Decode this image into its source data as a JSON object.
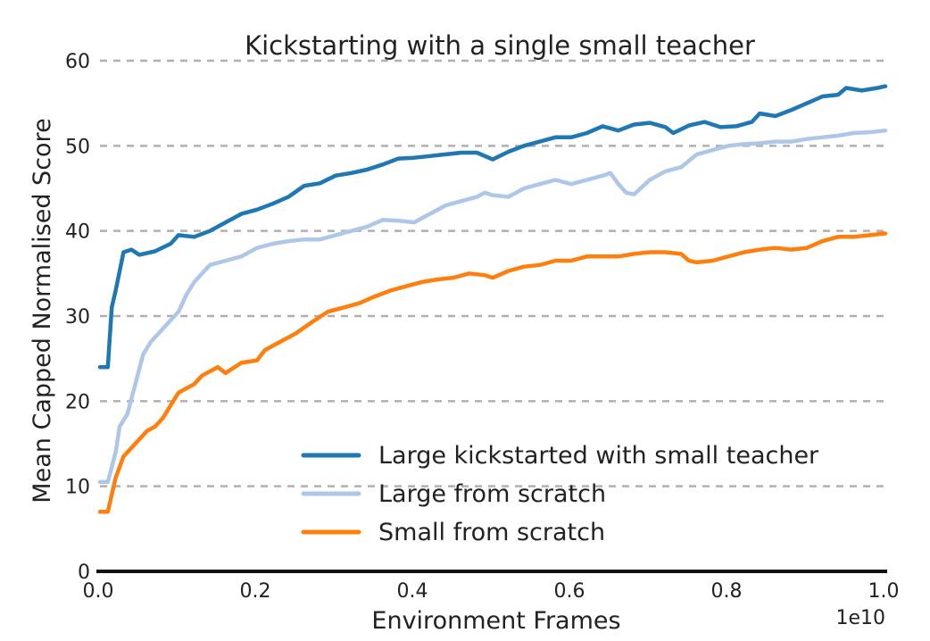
{
  "chart_data": {
    "type": "line",
    "title": "Kickstarting with a single small teacher",
    "xlabel": "Environment Frames",
    "ylabel": "Mean Capped Normalised Score",
    "x_scale_note": "1e10",
    "xlim": [
      0.0,
      1.0
    ],
    "ylim": [
      0,
      60
    ],
    "xticks": [
      "0.0",
      "0.2",
      "0.4",
      "0.6",
      "0.8",
      "1.0"
    ],
    "yticks": [
      "0",
      "10",
      "20",
      "30",
      "40",
      "50",
      "60"
    ],
    "grid": "horizontal dashed",
    "legend_position": "bottom-right",
    "series": [
      {
        "name": "Large kickstarted with small teacher",
        "color": "#1f77b4",
        "points": [
          [
            0.0,
            24.0
          ],
          [
            0.01,
            24.0
          ],
          [
            0.015,
            31.0
          ],
          [
            0.02,
            33.0
          ],
          [
            0.03,
            37.5
          ],
          [
            0.04,
            37.8
          ],
          [
            0.05,
            37.2
          ],
          [
            0.07,
            37.6
          ],
          [
            0.09,
            38.5
          ],
          [
            0.1,
            39.5
          ],
          [
            0.12,
            39.3
          ],
          [
            0.14,
            40.0
          ],
          [
            0.16,
            41.0
          ],
          [
            0.18,
            42.0
          ],
          [
            0.2,
            42.5
          ],
          [
            0.22,
            43.2
          ],
          [
            0.24,
            44.0
          ],
          [
            0.26,
            45.3
          ],
          [
            0.28,
            45.6
          ],
          [
            0.3,
            46.5
          ],
          [
            0.32,
            46.8
          ],
          [
            0.34,
            47.2
          ],
          [
            0.36,
            47.8
          ],
          [
            0.38,
            48.5
          ],
          [
            0.4,
            48.6
          ],
          [
            0.42,
            48.8
          ],
          [
            0.44,
            49.0
          ],
          [
            0.46,
            49.2
          ],
          [
            0.48,
            49.2
          ],
          [
            0.5,
            48.4
          ],
          [
            0.52,
            49.3
          ],
          [
            0.54,
            50.0
          ],
          [
            0.56,
            50.5
          ],
          [
            0.58,
            51.0
          ],
          [
            0.6,
            51.0
          ],
          [
            0.62,
            51.5
          ],
          [
            0.64,
            52.3
          ],
          [
            0.66,
            51.8
          ],
          [
            0.68,
            52.5
          ],
          [
            0.7,
            52.7
          ],
          [
            0.72,
            52.2
          ],
          [
            0.73,
            51.5
          ],
          [
            0.75,
            52.4
          ],
          [
            0.77,
            52.8
          ],
          [
            0.79,
            52.2
          ],
          [
            0.81,
            52.3
          ],
          [
            0.83,
            52.8
          ],
          [
            0.84,
            53.8
          ],
          [
            0.86,
            53.5
          ],
          [
            0.88,
            54.2
          ],
          [
            0.9,
            55.0
          ],
          [
            0.92,
            55.8
          ],
          [
            0.94,
            56.0
          ],
          [
            0.95,
            56.8
          ],
          [
            0.97,
            56.5
          ],
          [
            0.99,
            56.8
          ],
          [
            1.0,
            57.0
          ]
        ]
      },
      {
        "name": "Large from scratch",
        "color": "#aec7e8",
        "points": [
          [
            0.0,
            10.5
          ],
          [
            0.01,
            10.5
          ],
          [
            0.02,
            14.0
          ],
          [
            0.025,
            17.0
          ],
          [
            0.035,
            18.5
          ],
          [
            0.045,
            22.0
          ],
          [
            0.055,
            25.5
          ],
          [
            0.065,
            27.0
          ],
          [
            0.075,
            28.0
          ],
          [
            0.085,
            29.0
          ],
          [
            0.1,
            30.5
          ],
          [
            0.11,
            32.5
          ],
          [
            0.12,
            34.0
          ],
          [
            0.14,
            36.0
          ],
          [
            0.16,
            36.5
          ],
          [
            0.18,
            37.0
          ],
          [
            0.2,
            38.0
          ],
          [
            0.22,
            38.5
          ],
          [
            0.24,
            38.8
          ],
          [
            0.26,
            39.0
          ],
          [
            0.28,
            39.0
          ],
          [
            0.3,
            39.5
          ],
          [
            0.32,
            40.0
          ],
          [
            0.34,
            40.5
          ],
          [
            0.36,
            41.3
          ],
          [
            0.38,
            41.2
          ],
          [
            0.4,
            41.0
          ],
          [
            0.42,
            42.0
          ],
          [
            0.44,
            43.0
          ],
          [
            0.46,
            43.5
          ],
          [
            0.48,
            44.0
          ],
          [
            0.49,
            44.5
          ],
          [
            0.5,
            44.2
          ],
          [
            0.52,
            44.0
          ],
          [
            0.54,
            45.0
          ],
          [
            0.56,
            45.5
          ],
          [
            0.58,
            46.0
          ],
          [
            0.6,
            45.5
          ],
          [
            0.62,
            46.0
          ],
          [
            0.64,
            46.5
          ],
          [
            0.65,
            46.8
          ],
          [
            0.66,
            45.5
          ],
          [
            0.67,
            44.5
          ],
          [
            0.68,
            44.3
          ],
          [
            0.7,
            46.0
          ],
          [
            0.72,
            47.0
          ],
          [
            0.74,
            47.5
          ],
          [
            0.76,
            49.0
          ],
          [
            0.78,
            49.5
          ],
          [
            0.8,
            50.0
          ],
          [
            0.82,
            50.2
          ],
          [
            0.84,
            50.3
          ],
          [
            0.86,
            50.5
          ],
          [
            0.88,
            50.5
          ],
          [
            0.9,
            50.8
          ],
          [
            0.92,
            51.0
          ],
          [
            0.94,
            51.2
          ],
          [
            0.96,
            51.5
          ],
          [
            0.98,
            51.6
          ],
          [
            1.0,
            51.8
          ]
        ]
      },
      {
        "name": "Small from scratch",
        "color": "#ff7f0e",
        "points": [
          [
            0.0,
            7.0
          ],
          [
            0.01,
            7.0
          ],
          [
            0.015,
            9.0
          ],
          [
            0.02,
            11.0
          ],
          [
            0.03,
            13.5
          ],
          [
            0.05,
            15.5
          ],
          [
            0.06,
            16.5
          ],
          [
            0.07,
            17.0
          ],
          [
            0.08,
            18.0
          ],
          [
            0.09,
            19.5
          ],
          [
            0.1,
            21.0
          ],
          [
            0.11,
            21.5
          ],
          [
            0.12,
            22.0
          ],
          [
            0.13,
            23.0
          ],
          [
            0.14,
            23.5
          ],
          [
            0.15,
            24.0
          ],
          [
            0.16,
            23.3
          ],
          [
            0.18,
            24.5
          ],
          [
            0.2,
            24.8
          ],
          [
            0.21,
            26.0
          ],
          [
            0.23,
            27.0
          ],
          [
            0.25,
            28.0
          ],
          [
            0.27,
            29.3
          ],
          [
            0.29,
            30.5
          ],
          [
            0.31,
            31.0
          ],
          [
            0.33,
            31.5
          ],
          [
            0.35,
            32.3
          ],
          [
            0.37,
            33.0
          ],
          [
            0.39,
            33.5
          ],
          [
            0.41,
            34.0
          ],
          [
            0.43,
            34.3
          ],
          [
            0.45,
            34.5
          ],
          [
            0.47,
            35.0
          ],
          [
            0.49,
            34.8
          ],
          [
            0.5,
            34.5
          ],
          [
            0.52,
            35.3
          ],
          [
            0.54,
            35.8
          ],
          [
            0.56,
            36.0
          ],
          [
            0.58,
            36.5
          ],
          [
            0.6,
            36.5
          ],
          [
            0.62,
            37.0
          ],
          [
            0.64,
            37.0
          ],
          [
            0.66,
            37.0
          ],
          [
            0.68,
            37.3
          ],
          [
            0.7,
            37.5
          ],
          [
            0.72,
            37.5
          ],
          [
            0.74,
            37.3
          ],
          [
            0.75,
            36.5
          ],
          [
            0.76,
            36.3
          ],
          [
            0.78,
            36.5
          ],
          [
            0.8,
            37.0
          ],
          [
            0.82,
            37.5
          ],
          [
            0.84,
            37.8
          ],
          [
            0.86,
            38.0
          ],
          [
            0.88,
            37.8
          ],
          [
            0.9,
            38.0
          ],
          [
            0.92,
            38.8
          ],
          [
            0.94,
            39.3
          ],
          [
            0.96,
            39.3
          ],
          [
            0.98,
            39.5
          ],
          [
            1.0,
            39.7
          ]
        ]
      }
    ]
  }
}
